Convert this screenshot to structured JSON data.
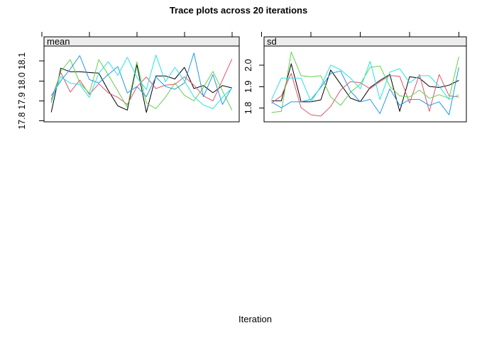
{
  "title": "Trace plots across 20 iterations",
  "xlabel": "Iteration",
  "chart_data": [
    {
      "type": "line",
      "strip_label": "mean",
      "x": [
        1,
        2,
        3,
        4,
        5,
        6,
        7,
        8,
        9,
        10,
        11,
        12,
        13,
        14,
        15,
        16,
        17,
        18,
        19,
        20
      ],
      "xlim": [
        0.24,
        20.76
      ],
      "ylim": [
        17.795,
        18.175
      ],
      "xticks": [
        0,
        5,
        10,
        15,
        20
      ],
      "yticks": [
        17.8,
        17.9,
        18.0,
        18.1
      ],
      "grid": false,
      "legend": "none",
      "series": [
        {
          "name": "black",
          "color": "#000000",
          "values": [
            17.843,
            18.064,
            18.046,
            18.046,
            18.042,
            18.039,
            17.952,
            17.875,
            17.854,
            18.082,
            17.842,
            18.025,
            18.025,
            18.01,
            18.068,
            17.962,
            17.977,
            17.941,
            17.977,
            17.965
          ]
        },
        {
          "name": "red",
          "color": "#DF536B",
          "values": [
            17.907,
            18.042,
            17.944,
            18.004,
            17.932,
            17.986,
            17.94,
            17.918,
            17.882,
            17.97,
            18.02,
            17.962,
            17.979,
            17.983,
            18.021,
            17.979,
            17.925,
            17.9,
            18.005,
            18.11
          ]
        },
        {
          "name": "green",
          "color": "#61D04F",
          "values": [
            17.889,
            18.048,
            18.107,
            17.99,
            17.938,
            18.107,
            18.03,
            17.95,
            17.867,
            18.095,
            17.889,
            17.861,
            17.918,
            17.99,
            17.928,
            17.9,
            17.968,
            18.048,
            17.95,
            17.854
          ]
        },
        {
          "name": "blue",
          "color": "#2297E6",
          "values": [
            17.926,
            18.0,
            18.06,
            18.127,
            18.007,
            17.99,
            18.032,
            18.072,
            17.94,
            17.972,
            17.921,
            18.02,
            17.972,
            17.958,
            17.99,
            18.14,
            17.921,
            18.032,
            17.882,
            17.968
          ]
        },
        {
          "name": "cyan",
          "color": "#28E2E5",
          "values": [
            17.9,
            18.021,
            17.989,
            17.982,
            17.918,
            18.039,
            18.096,
            18.028,
            18.119,
            18.018,
            17.957,
            18.13,
            17.996,
            18.068,
            18.0,
            17.921,
            17.879,
            17.861,
            17.918,
            17.964
          ]
        }
      ]
    },
    {
      "type": "line",
      "strip_label": "sd",
      "x": [
        1,
        2,
        3,
        4,
        5,
        6,
        7,
        8,
        9,
        10,
        11,
        12,
        13,
        14,
        15,
        16,
        17,
        18,
        19,
        20
      ],
      "xlim": [
        0.24,
        20.76
      ],
      "ylim": [
        1.735,
        2.09
      ],
      "xticks": [
        0,
        5,
        10,
        15,
        20
      ],
      "yticks": [
        1.8,
        1.9,
        2.0
      ],
      "grid": false,
      "legend": "none",
      "series": [
        {
          "name": "black",
          "color": "#000000",
          "values": [
            1.834,
            1.834,
            2.007,
            1.829,
            1.829,
            1.838,
            1.978,
            1.912,
            1.846,
            1.829,
            1.896,
            1.929,
            1.957,
            1.784,
            1.946,
            1.94,
            1.901,
            1.896,
            1.907,
            1.929
          ]
        },
        {
          "name": "red",
          "color": "#DF536B",
          "values": [
            1.823,
            1.857,
            1.962,
            1.801,
            1.768,
            1.762,
            1.807,
            1.884,
            1.923,
            1.918,
            1.89,
            1.923,
            1.952,
            1.948,
            1.823,
            1.957,
            1.784,
            1.957,
            1.857,
            1.851
          ]
        },
        {
          "name": "green",
          "color": "#61D04F",
          "values": [
            1.779,
            1.784,
            2.062,
            1.951,
            1.946,
            1.951,
            1.851,
            1.812,
            1.873,
            1.912,
            1.99,
            1.996,
            1.901,
            1.857,
            1.851,
            1.884,
            1.845,
            1.862,
            1.845,
            2.04
          ]
        },
        {
          "name": "blue",
          "color": "#2297E6",
          "values": [
            1.827,
            1.801,
            1.829,
            1.829,
            1.84,
            1.896,
            1.962,
            1.973,
            1.879,
            1.829,
            1.84,
            1.773,
            1.89,
            1.812,
            1.84,
            1.84,
            1.812,
            1.829,
            1.768,
            1.99
          ]
        },
        {
          "name": "cyan",
          "color": "#28E2E5",
          "values": [
            1.84,
            1.94,
            1.94,
            1.94,
            1.829,
            1.901,
            2.001,
            1.979,
            1.94,
            1.89,
            2.018,
            1.84,
            1.968,
            1.984,
            1.918,
            1.951,
            1.951,
            1.901,
            1.84,
            1.862
          ]
        }
      ]
    }
  ]
}
